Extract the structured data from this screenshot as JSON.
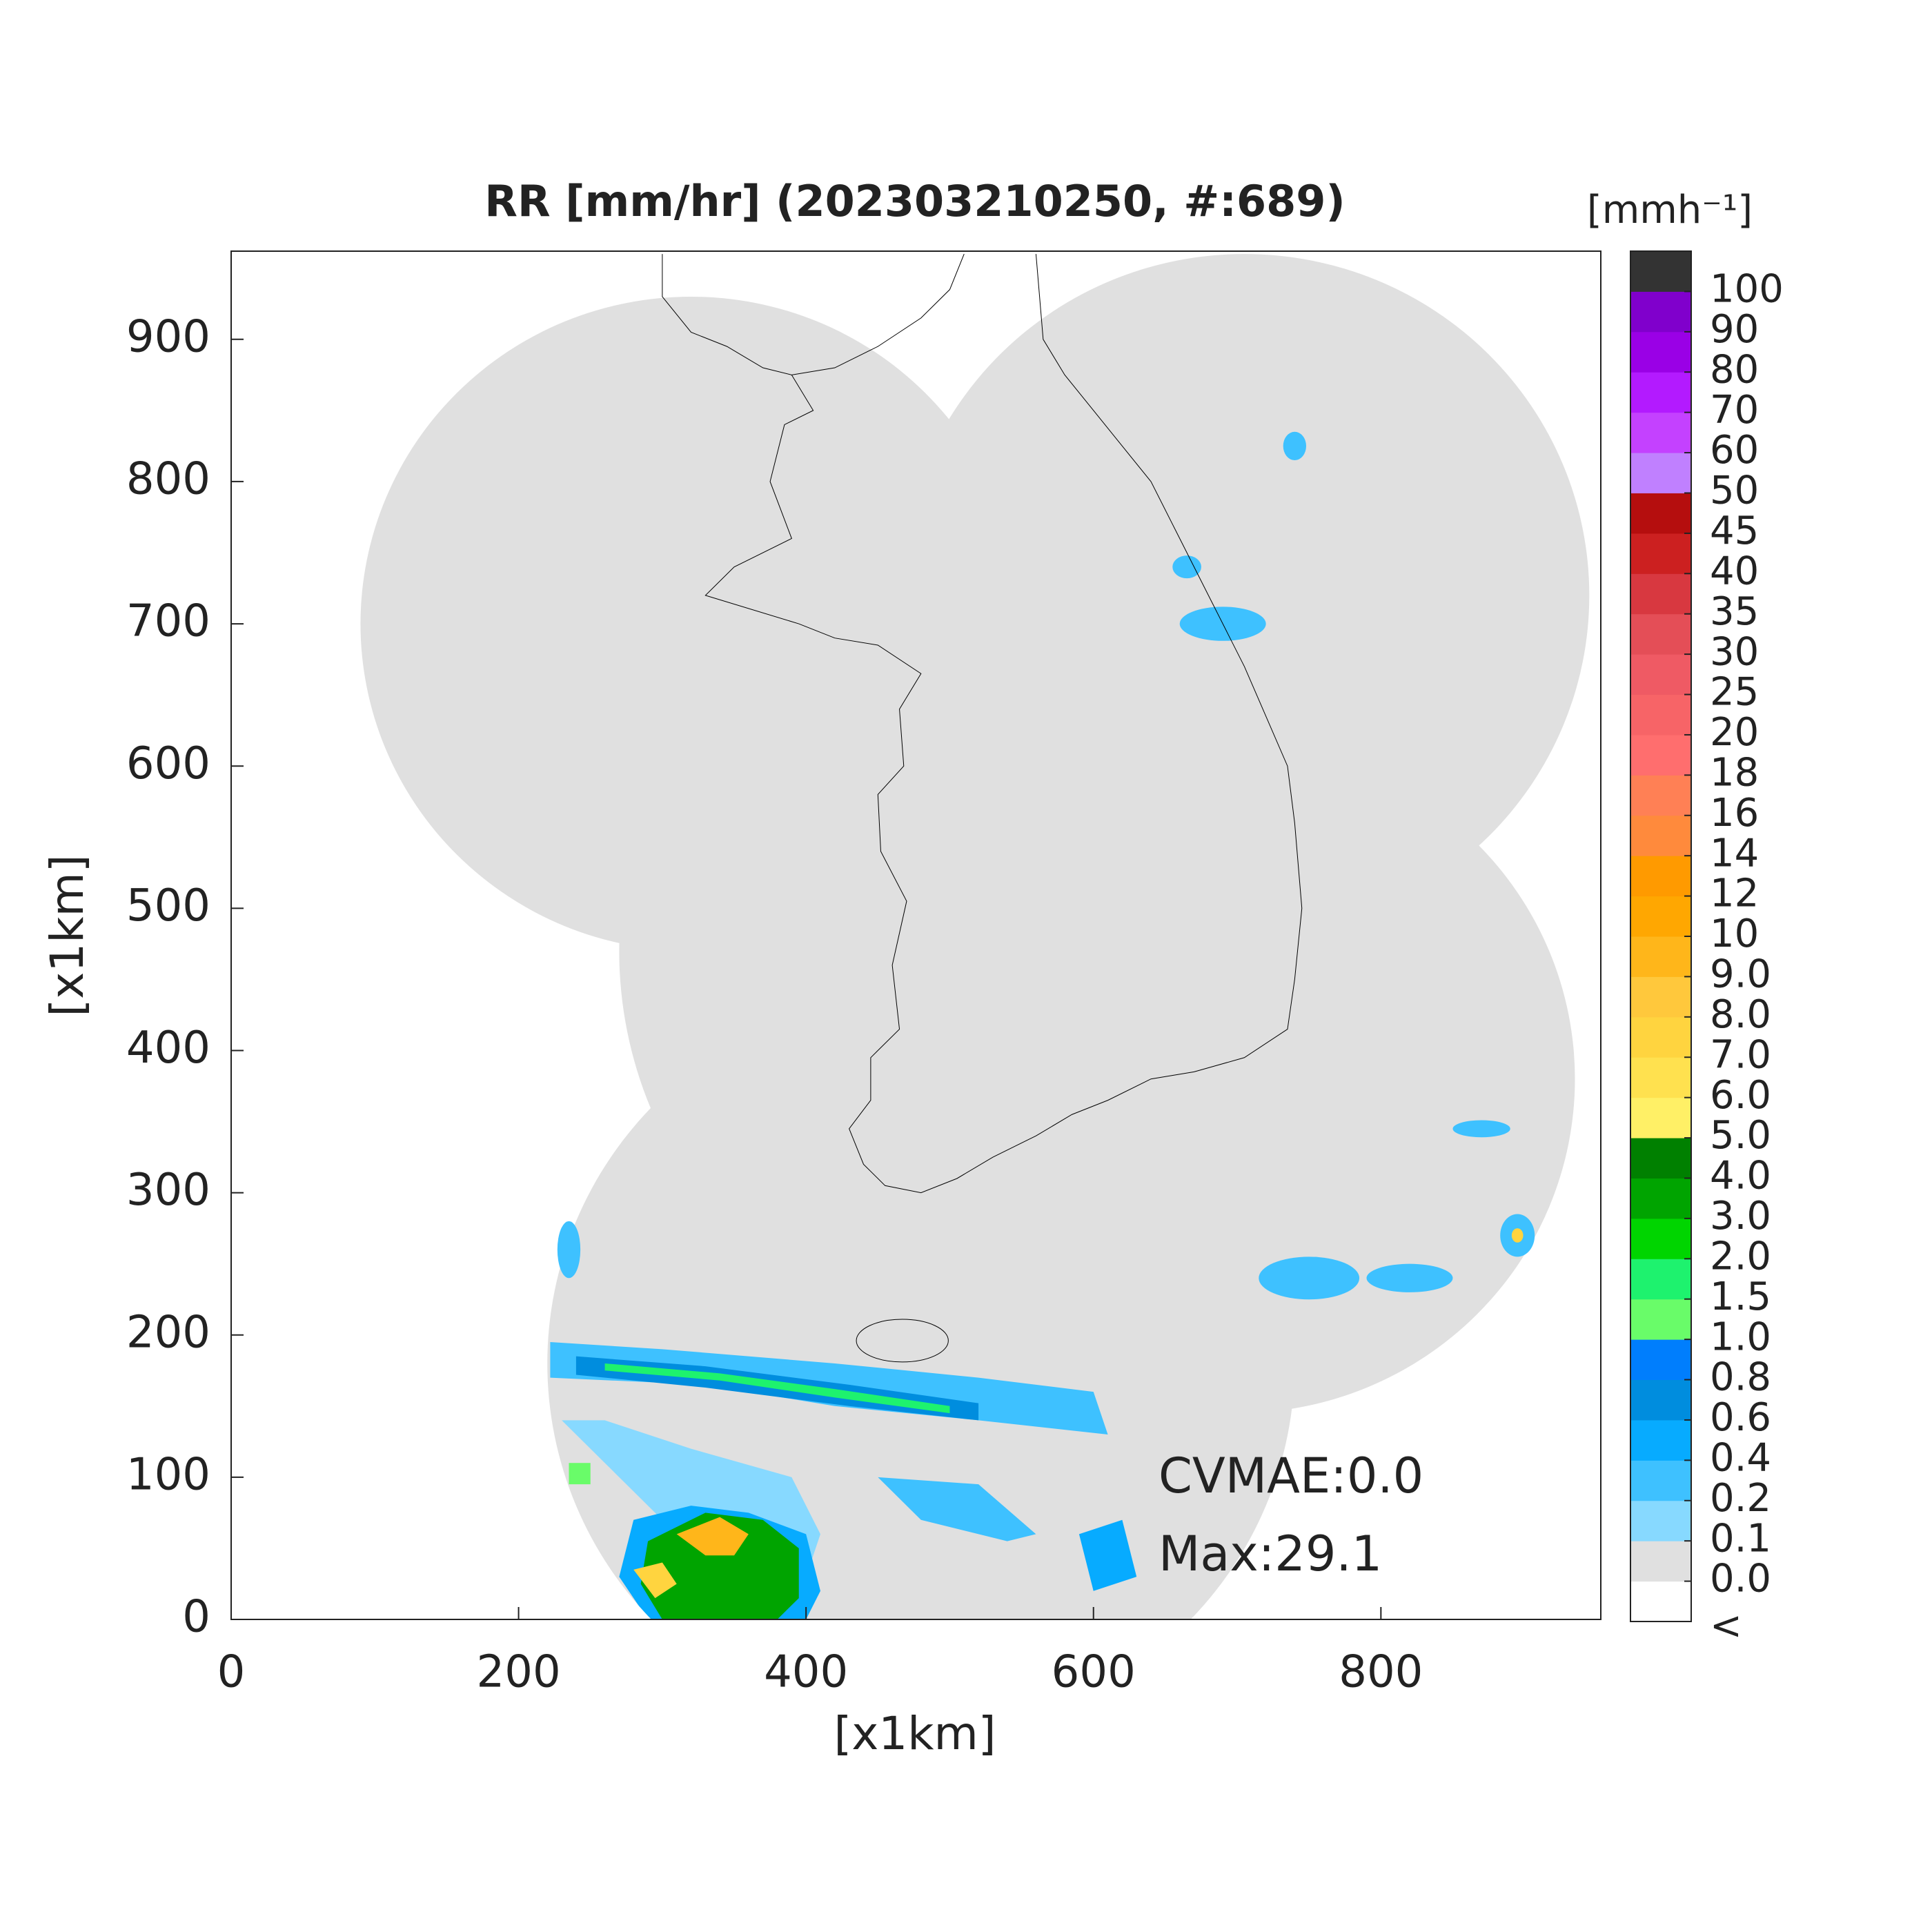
{
  "chart_data": {
    "type": "radar-map",
    "title": "RR [mm/hr] (202303210250, #:689)",
    "x_label": "[x1km]",
    "y_label": "[x1km]",
    "xlim": [
      0,
      953
    ],
    "ylim": [
      0,
      962
    ],
    "xticks": [
      0,
      200,
      400,
      600,
      800
    ],
    "yticks": [
      0,
      100,
      200,
      300,
      400,
      500,
      600,
      700,
      800,
      900
    ],
    "annotations": [
      "CVMAE:0.0",
      "Max:29.1"
    ],
    "colorbar": {
      "label": "[mmh⁻¹]",
      "under_label": "<",
      "ticks": [
        {
          "value": 0,
          "label": "0.0"
        },
        0.1,
        0.2,
        0.4,
        0.6,
        0.8,
        {
          "value": 1,
          "label": "1.0"
        },
        1.5,
        {
          "value": 2,
          "label": "2.0"
        },
        {
          "value": 3,
          "label": "3.0"
        },
        {
          "value": 4,
          "label": "4.0"
        },
        {
          "value": 5,
          "label": "5.0"
        },
        {
          "value": 6,
          "label": "6.0"
        },
        {
          "value": 7,
          "label": "7.0"
        },
        {
          "value": 8,
          "label": "8.0"
        },
        {
          "value": 9,
          "label": "9.0"
        },
        10,
        12,
        14,
        16,
        18,
        20,
        25,
        30,
        35,
        40,
        45,
        50,
        60,
        70,
        80,
        90,
        100
      ],
      "colors": [
        "#ffffff",
        "#e0e0e0",
        "#87d9ff",
        "#3ec1ff",
        "#07abff",
        "#008dde",
        "#007efd",
        "#69fc69",
        "#1ef26e",
        "#00d500",
        "#00a400",
        "#008000",
        "#fff066",
        "#ffe14f",
        "#ffd43f",
        "#ffc83c",
        "#ffb61a",
        "#ffa701",
        "#ff9a00",
        "#ff8a3c",
        "#ff8055",
        "#ff6e6e",
        "#f76467",
        "#ef5a64",
        "#e44e57",
        "#d83840",
        "#cc2020",
        "#b50e0e",
        "#c080ff",
        "#c441ff",
        "#b31aff",
        "#9a00e6",
        "#8000cc",
        "#333333"
      ]
    }
  }
}
